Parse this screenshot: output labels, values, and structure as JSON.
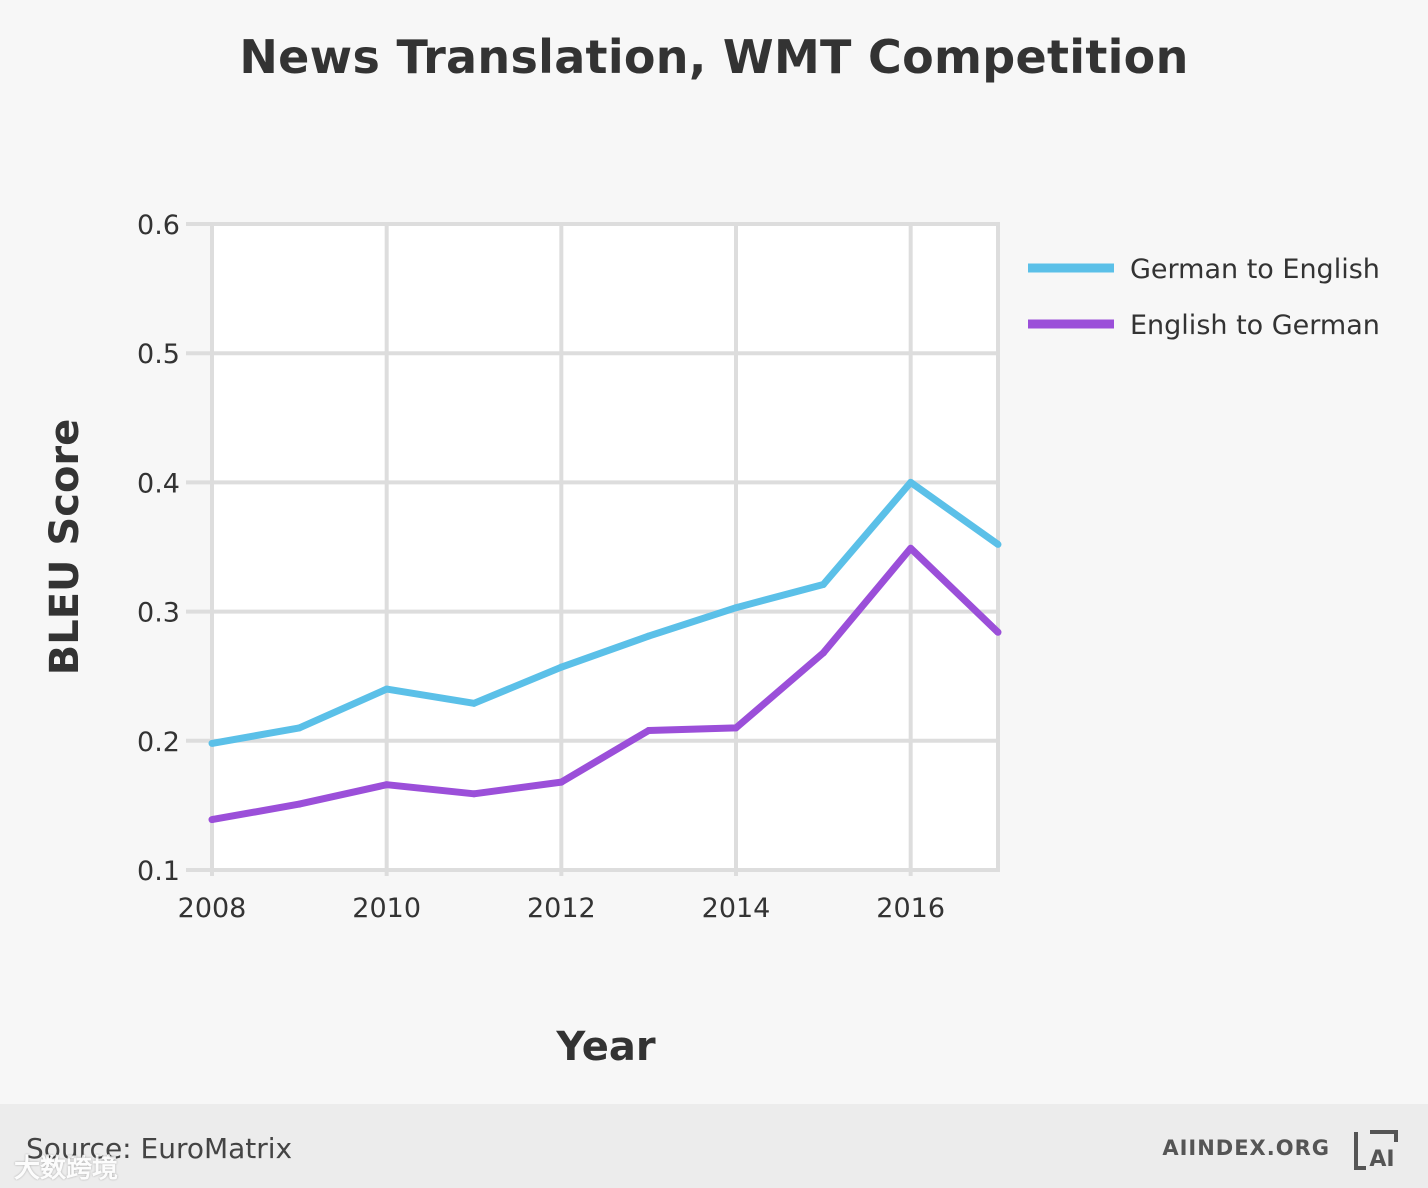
{
  "chart_data": {
    "type": "line",
    "title": "News Translation, WMT Competition",
    "xlabel": "Year",
    "ylabel": "BLEU Score",
    "xlim": [
      2008,
      2017
    ],
    "ylim": [
      0.1,
      0.6
    ],
    "x_ticks": [
      2008,
      2010,
      2012,
      2014,
      2016
    ],
    "y_ticks": [
      0.1,
      0.2,
      0.3,
      0.4,
      0.5,
      0.6
    ],
    "y_tick_labels": [
      "0.1",
      "0.2",
      "0.3",
      "0.4",
      "0.5",
      "0.6"
    ],
    "x_tick_labels": [
      "2008",
      "2010",
      "2012",
      "2014",
      "2016"
    ],
    "grid": true,
    "legend_position": "right",
    "x": [
      2008,
      2009,
      2010,
      2011,
      2012,
      2013,
      2014,
      2015,
      2016,
      2017
    ],
    "series": [
      {
        "name": "German to English",
        "color": "#5bc0e8",
        "values": [
          0.198,
          0.21,
          0.24,
          0.229,
          0.257,
          0.281,
          0.303,
          0.321,
          0.4,
          0.352
        ]
      },
      {
        "name": "English to German",
        "color": "#9b4fd9",
        "values": [
          0.139,
          0.151,
          0.166,
          0.159,
          0.168,
          0.208,
          0.21,
          0.268,
          0.349,
          0.284
        ]
      }
    ]
  },
  "footer": {
    "source": "Source: EuroMatrix",
    "brand": "AIINDEX.ORG",
    "logo_text": "AI",
    "watermark": "大数跨境"
  }
}
